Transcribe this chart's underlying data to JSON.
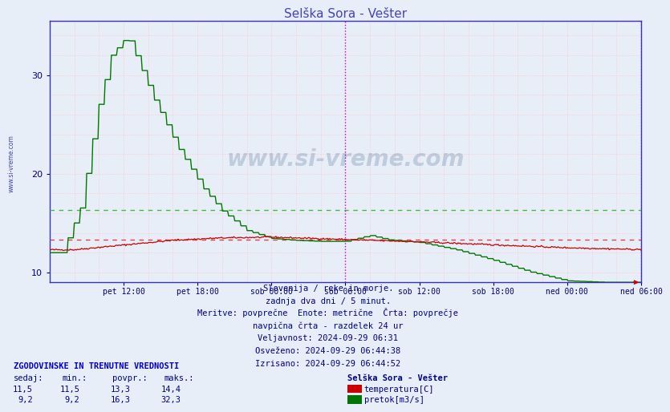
{
  "title": "Selška Sora - Vešter",
  "title_color": "#4444bb",
  "bg_color": "#e8eef8",
  "plot_bg_color": "#e8eef8",
  "border_color": "#3333bb",
  "grid_color": "#ffbbbb",
  "temp_color": "#cc0000",
  "flow_color": "#007700",
  "avg_temp": 13.3,
  "avg_flow": 16.3,
  "avg_temp_color": "#dd4444",
  "avg_flow_color": "#44bb44",
  "vline_magenta_color": "#cc00cc",
  "vline_dashed_color": "#888888",
  "ylim_min": 9.0,
  "ylim_max": 35.5,
  "yticks": [
    10,
    20,
    30
  ],
  "xlim_min": 0,
  "xlim_max": 48,
  "tick_positions": [
    6,
    12,
    18,
    24,
    30,
    36,
    42,
    48
  ],
  "tick_labels": [
    "pet 12:00",
    "pet 18:00",
    "sob 00:00",
    "sob 06:00",
    "sob 12:00",
    "sob 18:00",
    "ned 00:00",
    "ned 06:00"
  ],
  "watermark": "www.si-vreme.com",
  "info_lines": [
    "Slovenija / reke in morje.",
    "zadnja dva dni / 5 minut.",
    "Meritve: povprečne  Enote: metrične  Črta: povprečje",
    "navpična črta - razdelek 24 ur",
    "Veljavnost: 2024-09-29 06:31",
    "Osveženo: 2024-09-29 06:44:38",
    "Izrisano: 2024-09-29 06:44:52"
  ],
  "legend_title": "Selška Sora - Vešter",
  "legend_items": [
    {
      "label": "temperatura[C]",
      "color": "#cc0000"
    },
    {
      "label": "pretok[m3/s]",
      "color": "#007700"
    }
  ],
  "table_header": "ZGODOVINSKE IN TRENUTNE VREDNOSTI",
  "table_cols": [
    "sedaj:",
    "min.:",
    "povpr.:",
    "maks.:"
  ],
  "temp_row": [
    "11,5",
    "11,5",
    "13,3",
    "14,4"
  ],
  "flow_row": [
    "9,2",
    "9,2",
    "16,3",
    "32,3"
  ],
  "fig_width": 8.03,
  "fig_height": 5.22
}
